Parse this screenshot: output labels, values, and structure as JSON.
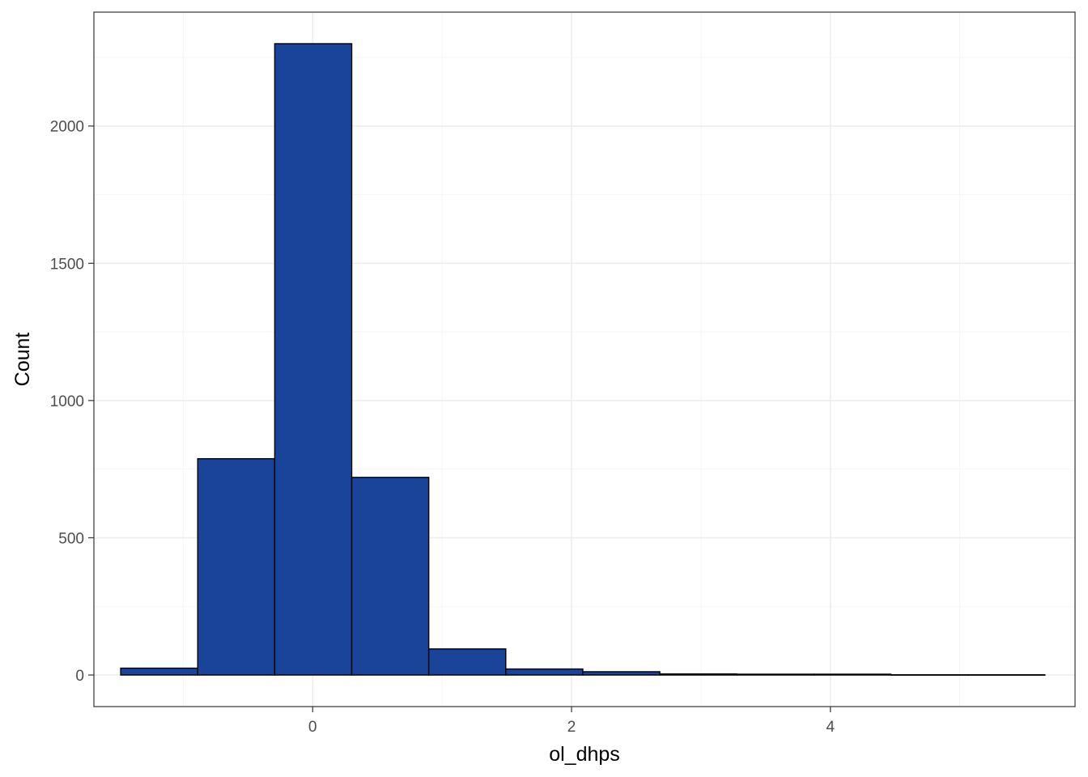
{
  "chart_data": {
    "type": "bar",
    "subtype": "histogram",
    "xlabel": "ol_dhps",
    "ylabel": "Count",
    "xlim": [
      -1.69,
      5.89
    ],
    "ylim": [
      -115,
      2415
    ],
    "x_ticks": [
      0,
      2,
      4
    ],
    "y_ticks": [
      0,
      500,
      1000,
      1500,
      2000
    ],
    "x_tick_labels": [
      "0",
      "2",
      "4"
    ],
    "y_tick_labels": [
      "0",
      "500",
      "1000",
      "1500",
      "2000"
    ],
    "bin_width": 0.595,
    "bins": [
      {
        "x0": -1.483,
        "x1": -0.888,
        "count": 25
      },
      {
        "x0": -0.888,
        "x1": -0.293,
        "count": 788
      },
      {
        "x0": -0.293,
        "x1": 0.302,
        "count": 2300
      },
      {
        "x0": 0.302,
        "x1": 0.897,
        "count": 720
      },
      {
        "x0": 0.897,
        "x1": 1.492,
        "count": 95
      },
      {
        "x0": 1.492,
        "x1": 2.087,
        "count": 22
      },
      {
        "x0": 2.087,
        "x1": 2.682,
        "count": 12
      },
      {
        "x0": 2.682,
        "x1": 3.277,
        "count": 4
      },
      {
        "x0": 3.277,
        "x1": 3.872,
        "count": 3
      },
      {
        "x0": 3.872,
        "x1": 4.467,
        "count": 3
      },
      {
        "x0": 4.467,
        "x1": 5.062,
        "count": 1
      },
      {
        "x0": 5.062,
        "x1": 5.657,
        "count": 1
      }
    ],
    "grid": true,
    "colors": {
      "bar_fill": "#1a4499",
      "bar_stroke": "#000000",
      "panel_background": "#ffffff",
      "grid": "#ebebeb",
      "border": "#333333"
    }
  }
}
